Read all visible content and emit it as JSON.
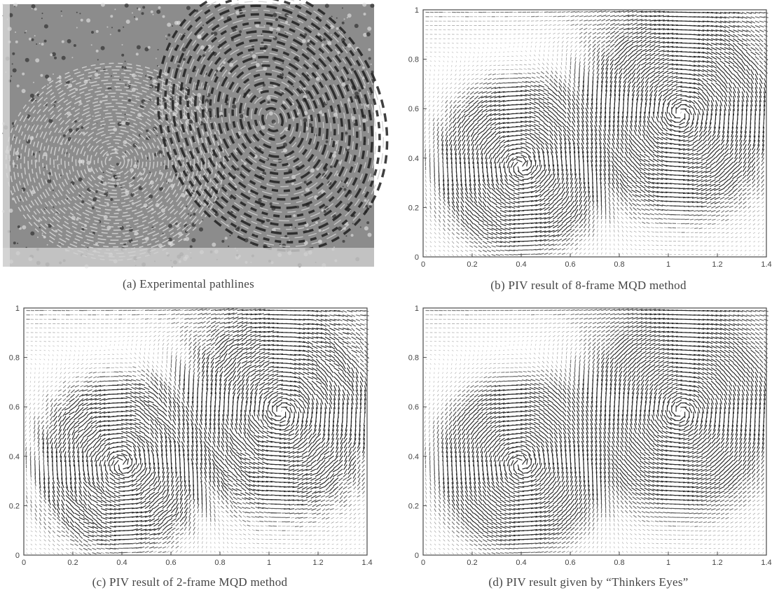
{
  "panels": [
    {
      "id": "a",
      "caption": "(a)  Experimental pathlines"
    },
    {
      "id": "b",
      "caption": "(b)  PIV result of 8-frame MQD method"
    },
    {
      "id": "c",
      "caption": "(c)  PIV result of 2-frame MQD method"
    },
    {
      "id": "d",
      "caption": "(d)  PIV result given by “Thinkers Eyes”"
    }
  ],
  "axes": {
    "x_ticks": [
      "0",
      "0.2",
      "0.4",
      "0.6",
      "0.8",
      "1",
      "1.2",
      "1.4"
    ],
    "y_ticks": [
      "0",
      "0.2",
      "0.4",
      "0.6",
      "0.8",
      "1"
    ],
    "xlim": [
      0,
      1.4
    ],
    "ylim": [
      0,
      1
    ]
  },
  "colors": {
    "ink": "#4a4a4a",
    "dark": "#1e1e1e",
    "photo_bg": "#8c8c8c"
  }
}
